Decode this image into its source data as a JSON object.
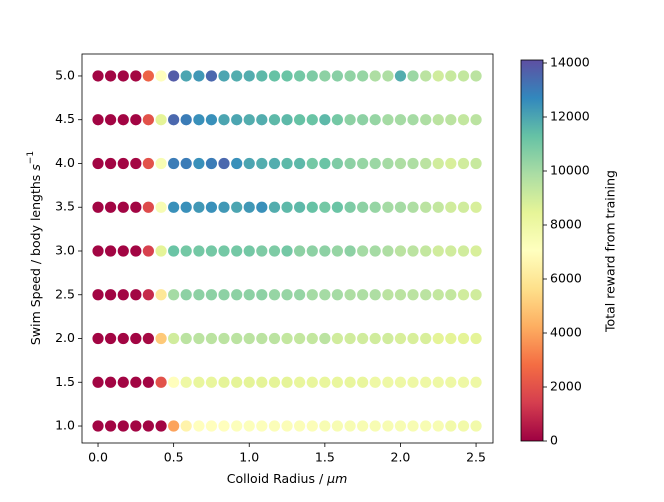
{
  "chart_data": {
    "type": "scatter",
    "xlabel": "Colloid Radius / ",
    "xlabel_unit": "μm",
    "ylabel": "Swim Speed / body lengths ",
    "ylabel_unit": "s",
    "ylabel_exponent": "−1",
    "colorbar_label": "Total reward from training",
    "colormap": [
      "#9e0142",
      "#d53e4f",
      "#f46d43",
      "#fdae61",
      "#fee08b",
      "#ffffbf",
      "#e6f598",
      "#abdda4",
      "#66c2a5",
      "#3288bd",
      "#5e4fa2"
    ],
    "x": [
      0.0,
      0.083,
      0.167,
      0.25,
      0.333,
      0.417,
      0.5,
      0.583,
      0.667,
      0.75,
      0.833,
      0.917,
      1.0,
      1.083,
      1.167,
      1.25,
      1.333,
      1.417,
      1.5,
      1.583,
      1.667,
      1.75,
      1.833,
      1.917,
      2.0,
      2.083,
      2.167,
      2.25,
      2.333,
      2.417,
      2.5
    ],
    "y": [
      5.0,
      4.5,
      4.0,
      3.5,
      3.0,
      2.5,
      2.0,
      1.5,
      1.0
    ],
    "values": [
      [
        100,
        100,
        100,
        150,
        2500,
        7000,
        13800,
        12000,
        12300,
        13500,
        12000,
        11800,
        11800,
        11500,
        11300,
        11200,
        11000,
        10800,
        10500,
        10600,
        10400,
        10300,
        9800,
        9800,
        11800,
        10200,
        9500,
        9000,
        9200,
        9300,
        9500
      ],
      [
        100,
        100,
        100,
        100,
        2000,
        8500,
        13500,
        13000,
        12500,
        12500,
        12000,
        12000,
        11800,
        11800,
        11500,
        11500,
        11300,
        11200,
        11500,
        11000,
        10500,
        10500,
        10300,
        10000,
        10000,
        10000,
        9800,
        9500,
        9500,
        9300,
        9500
      ],
      [
        100,
        100,
        100,
        150,
        2000,
        7500,
        13000,
        13000,
        12500,
        13000,
        13500,
        12500,
        12000,
        11800,
        11800,
        11500,
        11500,
        11000,
        11200,
        10800,
        10500,
        10300,
        10200,
        10000,
        9800,
        9800,
        9500,
        9000,
        8800,
        9000,
        9200
      ],
      [
        100,
        100,
        100,
        100,
        1800,
        7500,
        12500,
        12500,
        12300,
        12500,
        12300,
        12000,
        12300,
        12500,
        11800,
        11500,
        11500,
        11300,
        11000,
        11200,
        10800,
        10500,
        10300,
        10000,
        10000,
        9800,
        9500,
        9300,
        9000,
        9000,
        8800
      ],
      [
        100,
        100,
        100,
        100,
        1500,
        8500,
        11200,
        11000,
        11000,
        11000,
        11000,
        11000,
        11000,
        10800,
        10800,
        11000,
        10500,
        10500,
        10500,
        10300,
        10500,
        10000,
        10000,
        9800,
        9500,
        9500,
        9300,
        9000,
        9000,
        9000,
        8800
      ],
      [
        100,
        100,
        100,
        100,
        1000,
        6000,
        10000,
        10500,
        10500,
        10500,
        10500,
        10500,
        10500,
        10500,
        10300,
        10300,
        10300,
        10000,
        10000,
        10000,
        9800,
        9800,
        9800,
        9500,
        9500,
        9500,
        9500,
        9300,
        9300,
        9000,
        9000
      ],
      [
        100,
        100,
        100,
        100,
        200,
        5000,
        9000,
        9500,
        9500,
        9500,
        9500,
        9500,
        9500,
        9500,
        9500,
        9300,
        9300,
        9300,
        9500,
        9000,
        9000,
        9000,
        9000,
        9000,
        8800,
        8800,
        8800,
        8500,
        8500,
        8500,
        8500
      ],
      [
        100,
        100,
        100,
        100,
        100,
        2000,
        7000,
        8000,
        8300,
        8300,
        8500,
        8500,
        8500,
        8500,
        8500,
        8500,
        8300,
        8300,
        8300,
        8300,
        8300,
        8300,
        8000,
        8000,
        8000,
        8000,
        8000,
        8000,
        8000,
        8000,
        8000
      ],
      [
        100,
        100,
        100,
        100,
        100,
        100,
        4000,
        6500,
        7000,
        7000,
        7000,
        7200,
        7200,
        7200,
        7300,
        7300,
        7300,
        7300,
        7500,
        7500,
        7500,
        7500,
        7500,
        7500,
        7500,
        7500,
        7500,
        7500,
        7800,
        7800,
        7800
      ]
    ],
    "xlim": [
      -0.106,
      2.612
    ],
    "ylim": [
      0.806,
      5.251
    ],
    "xticks": [
      {
        "value": 0,
        "label": "0.0"
      },
      {
        "value": 0.5,
        "label": "0.5"
      },
      {
        "value": 1,
        "label": "1.0"
      },
      {
        "value": 1.5,
        "label": "1.5"
      },
      {
        "value": 2,
        "label": "2.0"
      },
      {
        "value": 2.5,
        "label": "2.5"
      }
    ],
    "yticks": [
      {
        "value": 1,
        "label": "1.0"
      },
      1.5,
      {
        "value": 2,
        "label": "2.0"
      },
      2.5,
      {
        "value": 3,
        "label": "3.0"
      },
      3.5,
      {
        "value": 4,
        "label": "4.0"
      },
      4.5,
      {
        "value": 5,
        "label": "5.0"
      }
    ],
    "clim": [
      0,
      14111
    ],
    "cticks": [
      0,
      2000,
      4000,
      6000,
      8000,
      10000,
      12000,
      14000
    ]
  }
}
